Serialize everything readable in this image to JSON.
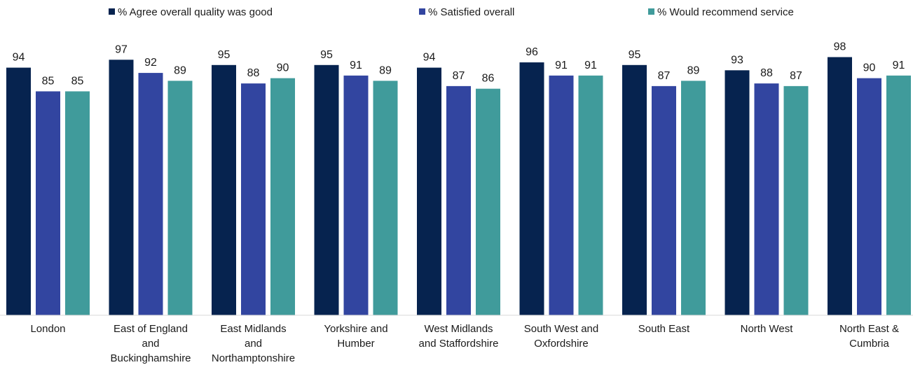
{
  "chart_data": {
    "type": "bar",
    "title": "",
    "xlabel": "",
    "ylabel": "",
    "ylim": [
      0,
      100
    ],
    "grid": false,
    "legend_position": "top",
    "categories": [
      "London",
      "East of England and Buckinghamshire",
      "East Midlands and Northamptonshire",
      "Yorkshire and Humber",
      "West Midlands and Staffordshire",
      "South West and Oxfordshire",
      "South East",
      "North West",
      "North East & Cumbria"
    ],
    "category_lines": [
      [
        "London"
      ],
      [
        "East of England",
        "and",
        "Buckinghamshire"
      ],
      [
        "East Midlands",
        "and",
        "Northamptonshire"
      ],
      [
        "Yorkshire and",
        "Humber"
      ],
      [
        "West Midlands",
        "and Staffordshire"
      ],
      [
        "South West and",
        "Oxfordshire"
      ],
      [
        "South East"
      ],
      [
        "North West"
      ],
      [
        "North East &",
        "Cumbria"
      ]
    ],
    "series": [
      {
        "name": "% Agree overall quality was good",
        "color": "#06234f",
        "values": [
          94,
          97,
          95,
          95,
          94,
          96,
          95,
          93,
          98
        ]
      },
      {
        "name": "% Satisfied overall",
        "color": "#3245a0",
        "values": [
          85,
          92,
          88,
          91,
          87,
          91,
          87,
          88,
          90
        ]
      },
      {
        "name": "% Would recommend service",
        "color": "#409b9b",
        "values": [
          85,
          89,
          90,
          89,
          86,
          91,
          89,
          87,
          91
        ]
      }
    ]
  }
}
